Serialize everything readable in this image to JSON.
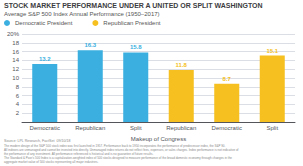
{
  "chart_data": {
    "type": "bar",
    "title": "STOCK MARKET PERFORMANCE UNDER A UNITED OR SPLIT WASHINGTON",
    "subtitle": "Average S&P 500 Index Annual Performance (1950–2017)",
    "xlabel": "Makeup of Congress",
    "categories": [
      "Democratic",
      "Republican",
      "Split",
      "Republican",
      "Democratic",
      "Split"
    ],
    "series": [
      {
        "name": "Democratic President",
        "color": "#3aafe0",
        "values": [
          13.2,
          16.3,
          15.8,
          null,
          null,
          null
        ]
      },
      {
        "name": "Republican President",
        "color": "#f5c020",
        "values": [
          null,
          null,
          null,
          11.8,
          8.7,
          15.1
        ]
      }
    ],
    "ylim": [
      0,
      20
    ],
    "yticks": [
      {
        "value": 0,
        "label": null
      },
      2,
      4,
      6,
      8,
      10,
      12,
      14,
      16,
      18,
      {
        "value": 20,
        "label": "20%"
      }
    ],
    "grid": true,
    "data_labels": true,
    "footnotes": [
      "Source: LPL Research, FactSet  09/10/18",
      "The modern design of the S&P 500 stock index was first launched in 1957. Performance back to 1950 incorporates the performance of predecessor index, the S&P 90.",
      "All indexes are unmanaged and cannot be invested into directly. Unmanaged index returns do not reflect fees, expenses, or sales charges. Index performance is not indicative of",
      "the performance of any investment. All performance referenced is historical and is no guarantee of future results.",
      "The Standard & Poor's 500 Index is a capitalization-weighted index of 500 stocks designed to measure performance of the broad domestic economy through changes in the",
      "aggregate market value of 500 stocks representing all major industries."
    ]
  }
}
